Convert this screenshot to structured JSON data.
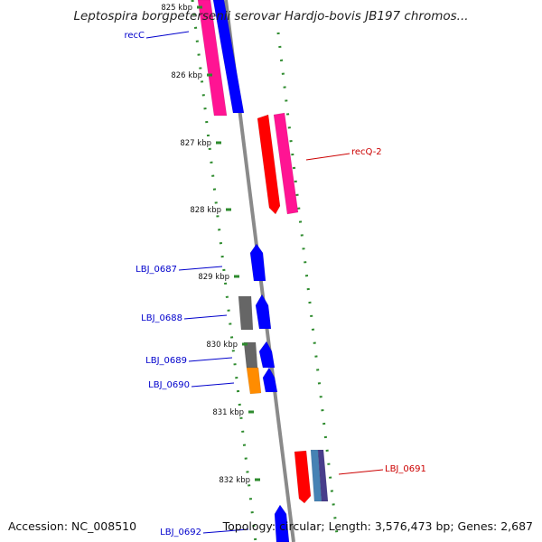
{
  "title": "Leptospira borgpetersenii serovar Hardjo-bovis JB197 chromos...",
  "footer": {
    "accession": "Accession: NC_008510",
    "topology": "Topology: circular; Length: 3,576,473 bp; Genes: 2,687"
  },
  "colors": {
    "background": "#ffffff",
    "backbone": "#8a8a8a",
    "tick_dash": "#2e8b2e",
    "label_blue": "#0000cc",
    "label_red": "#cc0000",
    "gene_magenta": "#ff1493",
    "gene_blue": "#0000ff",
    "gene_red": "#ff0000",
    "gene_gray": "#666666",
    "gene_orange": "#ff8c00",
    "gene_steelblue": "#4682b4",
    "gene_slateblue": "#483d8b"
  },
  "ticks": [
    "825 kbp",
    "826 kbp",
    "827 kbp",
    "828 kbp",
    "829 kbp",
    "830 kbp",
    "831 kbp",
    "832 kbp"
  ],
  "genes": [
    {
      "label": "recC",
      "label_color": "blue",
      "features": [
        {
          "color": "magenta",
          "direction": "reverse"
        },
        {
          "color": "blue",
          "direction": "reverse"
        }
      ]
    },
    {
      "label": "recQ-2",
      "label_color": "red",
      "features": [
        {
          "color": "red",
          "direction": "reverse"
        },
        {
          "color": "magenta",
          "direction": "reverse"
        }
      ]
    },
    {
      "label": "LBJ_0687",
      "label_color": "blue",
      "features": [
        {
          "color": "blue",
          "direction": "forward"
        }
      ]
    },
    {
      "label": "LBJ_0688",
      "label_color": "blue",
      "features": [
        {
          "color": "gray",
          "direction": "none"
        },
        {
          "color": "blue",
          "direction": "forward"
        }
      ]
    },
    {
      "label": "LBJ_0689",
      "label_color": "blue",
      "features": [
        {
          "color": "gray",
          "direction": "none"
        },
        {
          "color": "blue",
          "direction": "forward"
        }
      ]
    },
    {
      "label": "LBJ_0690",
      "label_color": "blue",
      "features": [
        {
          "color": "orange",
          "direction": "none"
        },
        {
          "color": "blue",
          "direction": "forward"
        }
      ]
    },
    {
      "label": "LBJ_0691",
      "label_color": "red",
      "features": [
        {
          "color": "red",
          "direction": "reverse"
        },
        {
          "color": "steelblue",
          "direction": "none"
        },
        {
          "color": "slateblue",
          "direction": "none"
        }
      ]
    },
    {
      "label": "LBJ_0692",
      "label_color": "blue",
      "features": [
        {
          "color": "blue",
          "direction": "forward"
        }
      ]
    }
  ]
}
